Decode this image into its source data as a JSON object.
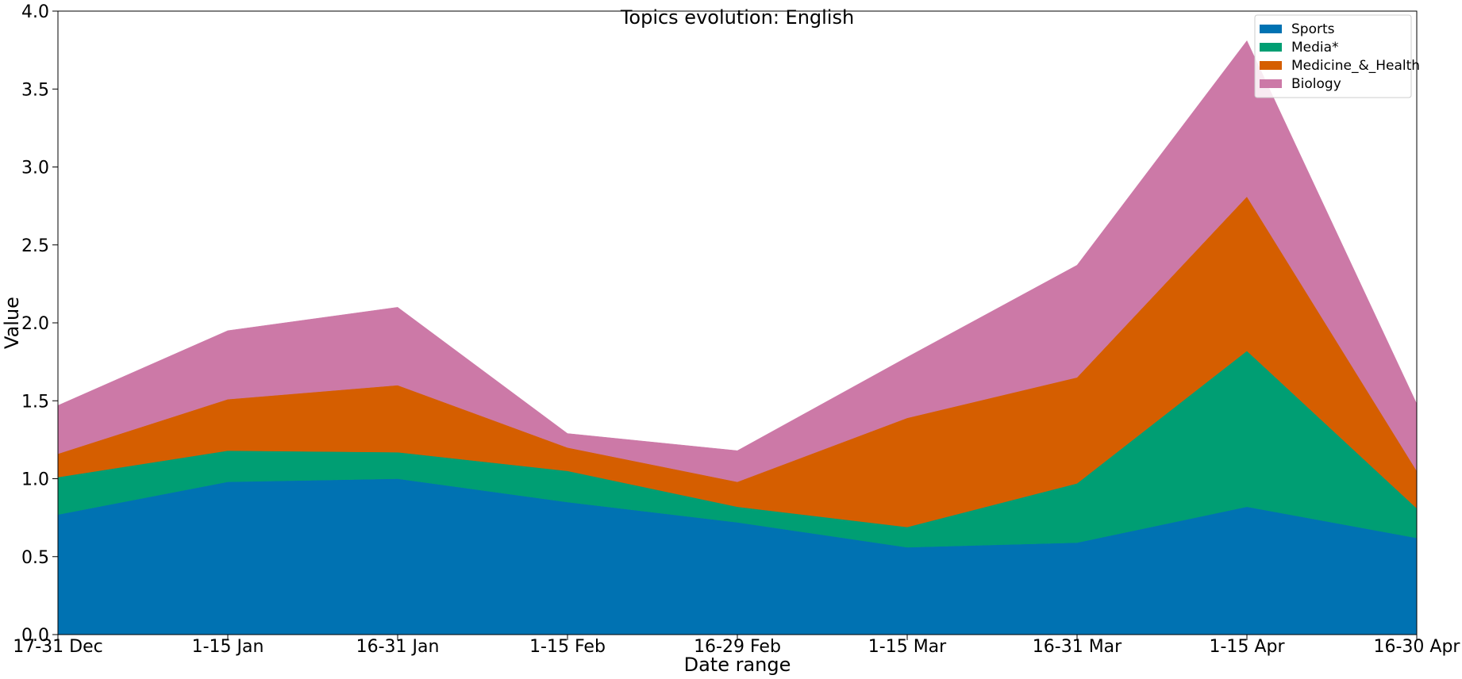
{
  "chart_data": {
    "type": "area",
    "stacked": true,
    "title": "Topics evolution: English",
    "xlabel": "Date range",
    "ylabel": "Value",
    "ylim": [
      0,
      4.0
    ],
    "yticks": [
      0.0,
      0.5,
      1.0,
      1.5,
      2.0,
      2.5,
      3.0,
      3.5,
      4.0
    ],
    "ytick_labels": [
      "0.0",
      "0.5",
      "1.0",
      "1.5",
      "2.0",
      "2.5",
      "3.0",
      "3.5",
      "4.0"
    ],
    "categories": [
      "17-31 Dec",
      "1-15 Jan",
      "16-31 Jan",
      "1-15 Feb",
      "16-29 Feb",
      "1-15 Mar",
      "16-31 Mar",
      "1-15 Apr",
      "16-30 Apr"
    ],
    "grid": false,
    "legend_position": "top-right",
    "series": [
      {
        "name": "Sports",
        "color": "#0072B2",
        "values": [
          0.77,
          0.98,
          1.0,
          0.85,
          0.72,
          0.56,
          0.59,
          0.82,
          0.62
        ]
      },
      {
        "name": "Media*",
        "color": "#009E73",
        "values": [
          0.24,
          0.2,
          0.17,
          0.2,
          0.1,
          0.13,
          0.38,
          1.0,
          0.19
        ]
      },
      {
        "name": "Medicine_&_Health",
        "color": "#D55E00",
        "values": [
          0.15,
          0.33,
          0.43,
          0.15,
          0.16,
          0.7,
          0.68,
          0.99,
          0.24
        ]
      },
      {
        "name": "Biology",
        "color": "#CC79A7",
        "values": [
          0.31,
          0.44,
          0.5,
          0.09,
          0.2,
          0.39,
          0.72,
          1.0,
          0.43
        ]
      }
    ]
  }
}
